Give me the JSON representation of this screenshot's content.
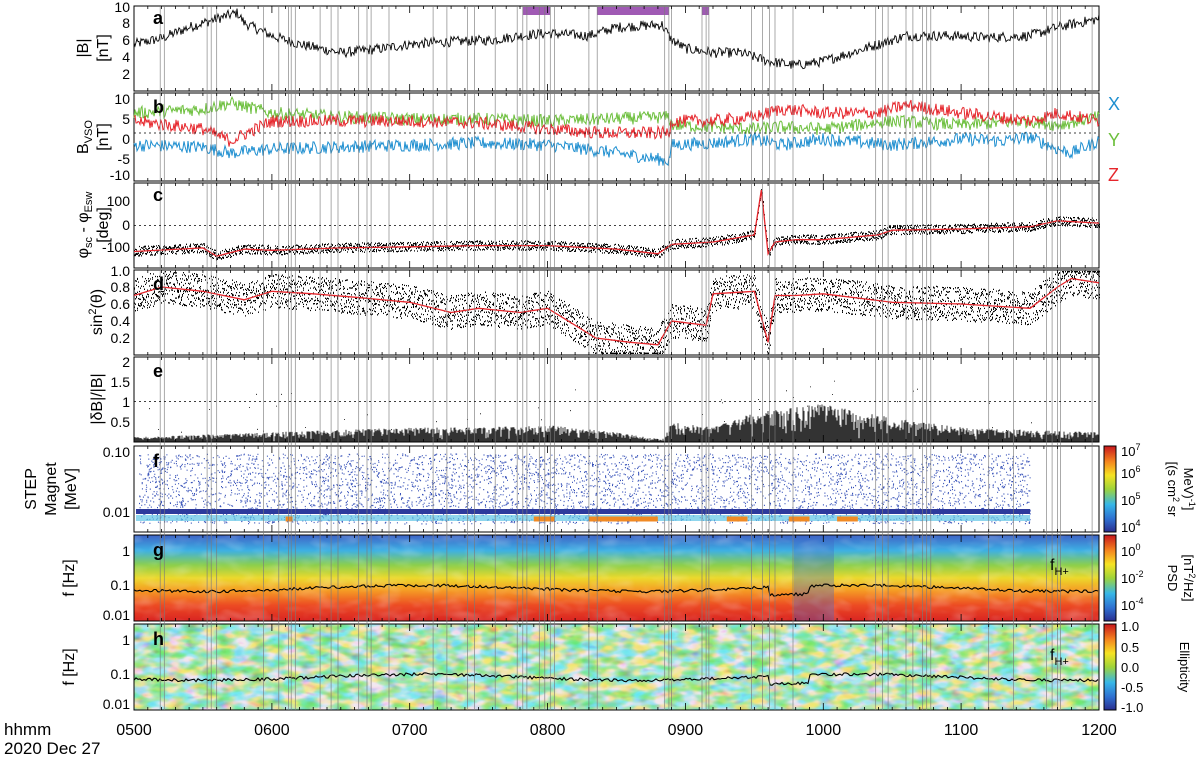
{
  "figure": {
    "time_label": "hhmm",
    "date_label": "2020 Dec 27",
    "time_ticks": [
      "0500",
      "0600",
      "0700",
      "0800",
      "0900",
      "1000",
      "1100",
      "1200"
    ],
    "time_range": [
      5,
      12
    ]
  },
  "colors": {
    "bx": "#1f8fd0",
    "by": "#6cbf3c",
    "bz": "#e6262c",
    "highlight": "#a05ab4",
    "event_line": "#7a7a7a",
    "smooth_line": "#e6262c"
  },
  "chart_data": [
    {
      "type": "line",
      "panel": "a",
      "ylabel_1": "|B|",
      "ylabel_2": "[nT]",
      "yticks": [
        "2",
        "4",
        "6",
        "8",
        "10"
      ],
      "ylim": [
        0,
        10
      ],
      "series": [
        {
          "x": [
            5.0,
            5.2,
            5.4,
            5.6,
            5.75,
            5.8,
            6.0,
            6.2,
            6.5,
            6.8,
            7.0,
            7.3,
            7.6,
            7.8,
            8.0,
            8.3,
            8.5,
            8.83,
            8.9,
            9.0,
            9.2,
            9.4,
            9.5,
            9.6,
            9.8,
            10.0,
            10.3,
            10.6,
            10.9,
            11.2,
            11.5,
            11.7,
            12.0
          ],
          "y": [
            5.5,
            6.2,
            7.5,
            8.5,
            9.2,
            8.0,
            6.5,
            5.5,
            4.5,
            5.0,
            5.5,
            5.8,
            6.0,
            6.5,
            6.8,
            6.5,
            7.5,
            7.8,
            6.0,
            5.0,
            4.5,
            4.5,
            4.0,
            3.5,
            3.0,
            3.5,
            5.0,
            6.5,
            6.5,
            6.3,
            6.5,
            7.5,
            8.5
          ]
        }
      ],
      "highlights": [
        [
          7.82,
          8.02
        ],
        [
          8.36,
          8.88
        ],
        [
          9.12,
          9.17
        ]
      ]
    },
    {
      "type": "line",
      "panel": "b",
      "ylabel_main": "B",
      "ylabel_sub": "VSO",
      "ylabel_2": "[nT]",
      "yticks": [
        "-10",
        "-5",
        "0",
        "5",
        "10"
      ],
      "ylim": [
        -12,
        10
      ],
      "legend": [
        "X",
        "Y",
        "Z"
      ],
      "series": [
        {
          "name": "X",
          "x": [
            5.0,
            5.5,
            5.7,
            6.0,
            6.5,
            7.0,
            7.5,
            8.0,
            8.4,
            8.7,
            8.88,
            8.9,
            9.2,
            9.5,
            9.7,
            10.0,
            10.5,
            11.0,
            11.3,
            11.5,
            11.7,
            11.8,
            12.0
          ],
          "y": [
            -3,
            -3.5,
            -5,
            -4,
            -3.5,
            -3,
            -2.5,
            -3,
            -4.5,
            -6,
            -7,
            -3,
            -2.5,
            -1.5,
            -3,
            -1.5,
            -3,
            -1.5,
            -2,
            -1,
            -4,
            -5,
            -2
          ]
        },
        {
          "name": "Y",
          "x": [
            5.0,
            5.5,
            5.7,
            6.0,
            6.5,
            7.0,
            7.5,
            8.0,
            8.4,
            8.88,
            8.9,
            9.5,
            9.7,
            10.0,
            10.5,
            11.0,
            11.5,
            11.7,
            12.0
          ],
          "y": [
            5,
            6,
            7.5,
            5,
            4,
            3.5,
            3.5,
            3,
            3.5,
            4,
            2,
            1,
            1.5,
            1,
            3,
            2,
            3,
            2,
            4
          ]
        },
        {
          "name": "Z",
          "x": [
            5.0,
            5.5,
            5.7,
            6.0,
            6.5,
            7.0,
            7.5,
            8.0,
            8.4,
            8.88,
            8.9,
            9.2,
            9.5,
            9.7,
            10.0,
            10.4,
            10.6,
            11.0,
            11.5,
            11.7,
            12.0
          ],
          "y": [
            3,
            1,
            -2,
            3,
            3,
            3,
            2.5,
            1,
            0,
            0,
            3,
            3,
            4,
            6,
            5,
            5,
            7,
            5,
            3,
            5,
            3
          ]
        }
      ]
    },
    {
      "type": "scatter",
      "panel": "c",
      "ylabel_main": "φ",
      "ylabel_sub1": "sc",
      "ylabel_mid": " - φ",
      "ylabel_sub2": "Esw",
      "ylabel_2": "[deg]",
      "yticks": [
        "-100",
        "0",
        "100"
      ],
      "ylim": [
        -180,
        180
      ],
      "series": [
        {
          "name": "smoothed",
          "x": [
            5.0,
            5.5,
            5.6,
            5.8,
            6.0,
            6.5,
            7.0,
            7.5,
            8.0,
            8.5,
            8.8,
            8.9,
            9.2,
            9.5,
            9.55,
            9.6,
            9.65,
            9.8,
            10.0,
            10.4,
            10.5,
            11.0,
            11.5,
            11.7,
            12.0
          ],
          "y": [
            -110,
            -95,
            -130,
            -100,
            -105,
            -95,
            -90,
            -85,
            -85,
            -100,
            -120,
            -80,
            -70,
            -40,
            150,
            -120,
            -70,
            -60,
            -60,
            -40,
            -20,
            -15,
            -5,
            20,
            10
          ]
        }
      ]
    },
    {
      "type": "scatter",
      "panel": "d",
      "ylabel_main": "sin",
      "ylabel_sup": "2",
      "ylabel_rest": "(θ)",
      "yticks": [
        "0.2",
        "0.4",
        "0.6",
        "0.8",
        "1.0"
      ],
      "ylim": [
        0,
        1
      ],
      "series": [
        {
          "name": "smoothed",
          "x": [
            5.0,
            5.2,
            5.5,
            5.8,
            6.0,
            6.3,
            6.6,
            7.0,
            7.3,
            7.5,
            7.8,
            8.0,
            8.35,
            8.6,
            8.8,
            8.9,
            9.15,
            9.2,
            9.5,
            9.6,
            9.65,
            9.8,
            10.0,
            10.5,
            11.0,
            11.5,
            11.7,
            11.8,
            12.0
          ],
          "y": [
            0.7,
            0.8,
            0.75,
            0.65,
            0.75,
            0.72,
            0.68,
            0.62,
            0.5,
            0.55,
            0.5,
            0.55,
            0.2,
            0.15,
            0.12,
            0.4,
            0.35,
            0.72,
            0.75,
            0.15,
            0.7,
            0.7,
            0.72,
            0.62,
            0.6,
            0.55,
            0.8,
            0.9,
            0.85
          ]
        }
      ]
    },
    {
      "type": "scatter",
      "panel": "e",
      "ylabel_main": "|δB|/|B|",
      "yticks": [
        "0.5",
        "1",
        "1.5",
        "2"
      ],
      "ylim": [
        0,
        2.1
      ],
      "series": [
        {
          "name": "ratio",
          "x": [
            5.0,
            5.5,
            6.0,
            6.5,
            7.0,
            7.5,
            8.0,
            8.5,
            8.83,
            8.9,
            9.2,
            9.5,
            10.0,
            10.5,
            11.0,
            11.5,
            12.0
          ],
          "y": [
            0.1,
            0.15,
            0.2,
            0.25,
            0.3,
            0.3,
            0.35,
            0.2,
            0.05,
            0.4,
            0.3,
            0.6,
            0.8,
            0.5,
            0.3,
            0.25,
            0.2
          ]
        }
      ]
    },
    {
      "type": "heatmap",
      "panel": "f",
      "ylabel_1": "STEP",
      "ylabel_2": "Magnet",
      "ylabel_3": "[MeV]",
      "yticks": [
        "0.01",
        "0.10"
      ],
      "colorbar_ticks_base": [
        "10",
        "10",
        "10",
        "10"
      ],
      "colorbar_ticks_exp": [
        "7",
        "6",
        "5",
        "4"
      ],
      "colorbar_label_1": "[(s cm",
      "colorbar_label_1_sup": "2",
      "colorbar_label_1_end": " sr",
      "colorbar_label_2": "MeV)",
      "colorbar_label_2_sup": "-1",
      "colorbar_label_2_end": "]"
    },
    {
      "type": "heatmap",
      "panel": "g",
      "ylabel_main": "f [Hz]",
      "yticks": [
        "0.01",
        "0.1",
        "1"
      ],
      "annotation": "f",
      "annotation_sub": "H+",
      "colorbar_ticks_base": [
        "10",
        "10",
        "10"
      ],
      "colorbar_ticks_exp": [
        "0",
        "-2",
        "-4"
      ],
      "colorbar_label_1": "PSD",
      "colorbar_label_2": "[nT",
      "colorbar_label_2_sup": "2",
      "colorbar_label_2_end": "/Hz]"
    },
    {
      "type": "heatmap",
      "panel": "h",
      "ylabel_main": "f [Hz]",
      "yticks": [
        "0.01",
        "0.1",
        "1"
      ],
      "annotation": "f",
      "annotation_sub": "H+",
      "colorbar_ticks": [
        "1.0",
        "0.5",
        "0.0",
        "-0.5",
        "-1.0"
      ],
      "colorbar_label": "Ellipticity"
    }
  ]
}
